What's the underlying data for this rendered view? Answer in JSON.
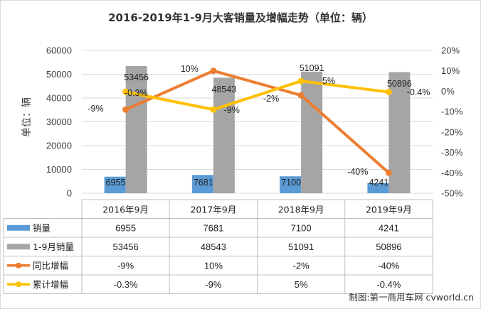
{
  "chart_data": {
    "type": "bar",
    "title": "2016-2019年1-9月大客销量及增幅走势（单位：辆）",
    "ylabel": "单位：辆",
    "ylim": [
      0,
      60000
    ],
    "y_ticks": [
      "0",
      "10000",
      "20000",
      "30000",
      "40000",
      "50000",
      "60000"
    ],
    "y2lim": [
      -50,
      20
    ],
    "y2_ticks": [
      "-50%",
      "-40%",
      "-30%",
      "-20%",
      "-10%",
      "0%",
      "10%",
      "20%"
    ],
    "categories": [
      "2016年9月",
      "2017年9月",
      "2018年9月",
      "2019年9月"
    ],
    "series": [
      {
        "name": "销量",
        "kind": "bar",
        "color": "#5b9bd5",
        "values": [
          6955,
          7681,
          7100,
          4241
        ],
        "labels": [
          "6955",
          "7681",
          "7100",
          "4241"
        ]
      },
      {
        "name": "1-9月销量",
        "kind": "bar",
        "color": "#a5a5a5",
        "values": [
          53456,
          48543,
          51091,
          50896
        ],
        "labels": [
          "53456",
          "48543",
          "51091",
          "50896"
        ]
      },
      {
        "name": "同比增幅",
        "kind": "line",
        "axis": "right",
        "color": "#ed7d31",
        "values": [
          -9,
          10,
          -2,
          -40
        ],
        "labels": [
          "-9%",
          "10%",
          "-2%",
          "-40%"
        ]
      },
      {
        "name": "累计增幅",
        "kind": "line",
        "axis": "right",
        "color": "#ffc000",
        "values": [
          -0.3,
          -9,
          5,
          -0.4
        ],
        "labels": [
          "-0.3%",
          "-9%",
          "5%",
          "-0.4%"
        ]
      }
    ],
    "credit": "制图:第一商用车网 cvworld.cn",
    "legend": "data table below chart"
  }
}
